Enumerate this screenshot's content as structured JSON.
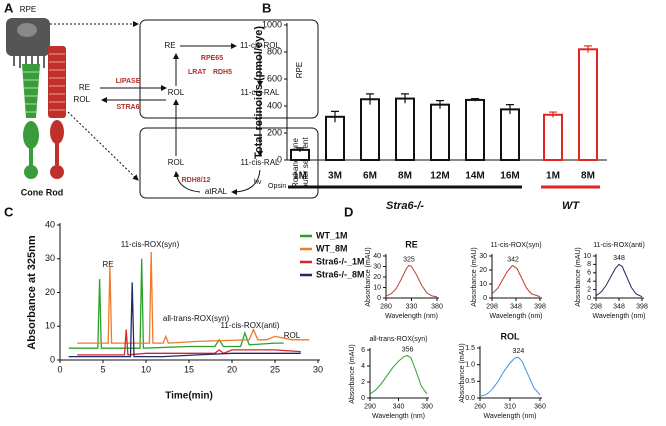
{
  "panel_labels": [
    "A",
    "B",
    "C",
    "D"
  ],
  "diagram": {
    "cell_label": "RPE",
    "photoreceptors": "Cone Rod",
    "rpe_box": {
      "side_label": "RPE",
      "nodes": [
        "RE",
        "11-cis-ROL",
        "ROL",
        "11-cis-RAL"
      ],
      "enzymes": [
        "RPE65",
        "LRAT",
        "RDH5"
      ]
    },
    "uptake": {
      "nodes": [
        "RE",
        "ROL"
      ],
      "enzymes": [
        "LIPASE",
        "STRA6"
      ]
    },
    "outer_segment_box": {
      "side_label": [
        "Rod and cone",
        "outer segment"
      ],
      "nodes": [
        "ROL",
        "11-cis-RAL",
        "atRAL"
      ],
      "enzymes": [
        "RDH8/12"
      ],
      "light": "hv",
      "protein": "Opsin"
    }
  },
  "chart_data": [
    {
      "type": "bar",
      "y_label": "Total retinoids (pmol/eye)",
      "categories": [
        "1M",
        "3M",
        "6M",
        "8M",
        "12M",
        "14M",
        "16M",
        "1M",
        "8M"
      ],
      "series": [
        {
          "name": "Stra6-/-",
          "color": "#111111",
          "values": [
            75,
            320,
            450,
            455,
            410,
            445,
            375,
            null,
            null
          ],
          "errors": [
            15,
            40,
            40,
            35,
            30,
            10,
            35,
            null,
            null
          ]
        },
        {
          "name": "WT",
          "color": "#e0261f",
          "values": [
            null,
            null,
            null,
            null,
            null,
            null,
            null,
            335,
            820
          ],
          "errors": [
            null,
            null,
            null,
            null,
            null,
            null,
            null,
            20,
            25
          ]
        }
      ],
      "ylim": [
        0,
        1000
      ],
      "yticks": [
        0,
        200,
        400,
        600,
        800,
        1000
      ]
    },
    {
      "type": "line",
      "x_label": "Time(min)",
      "y_label": "Absorbance at 325nm",
      "peak_labels": [
        "RE",
        "11-cis-ROX(syn)",
        "all-trans-ROX(syn)",
        "11-cis-ROX(anti)",
        "ROL"
      ],
      "series": [
        {
          "name": "WT_1M",
          "color": "#2ca02c",
          "x": [
            1,
            4.4,
            4.6,
            4.8,
            9.3,
            9.5,
            9.7,
            15,
            18,
            18.5,
            19,
            21,
            21.5,
            22,
            25,
            26
          ],
          "values": [
            3.5,
            3.5,
            24,
            3.5,
            3.5,
            30,
            3.5,
            4,
            4,
            6,
            4,
            4,
            8,
            4.5,
            5,
            5
          ]
        },
        {
          "name": "WT_8M",
          "color": "#f07a2a",
          "x": [
            2,
            5.6,
            5.8,
            6,
            10.4,
            10.6,
            10.8,
            12,
            12.3,
            12.6,
            16,
            22,
            22.5,
            23,
            24,
            25,
            27,
            29
          ],
          "values": [
            5,
            5,
            28,
            5,
            5,
            32,
            5,
            5,
            7,
            5,
            5.5,
            6,
            9,
            6,
            6,
            7,
            6,
            6
          ]
        },
        {
          "name": "Stra6-/-_1M",
          "color": "#d62728",
          "x": [
            2,
            7.5,
            7.7,
            7.9,
            10,
            13,
            18,
            18.5,
            19,
            20,
            25,
            28
          ],
          "values": [
            1.5,
            1.5,
            9,
            1.5,
            2,
            2,
            2,
            3,
            2,
            3,
            3,
            2.5
          ]
        },
        {
          "name": "Stra6-/-_8M",
          "color": "#1f2a6b",
          "x": [
            1,
            8.2,
            8.4,
            8.6,
            12,
            16,
            20,
            24,
            28
          ],
          "values": [
            1,
            1,
            23,
            1,
            1,
            1.5,
            2,
            2,
            2
          ]
        }
      ],
      "xlim": [
        0,
        30
      ],
      "xticks": [
        0,
        5,
        10,
        15,
        20,
        25,
        30
      ],
      "ylim": [
        0,
        40
      ],
      "yticks": [
        0,
        10,
        20,
        30,
        40
      ]
    },
    {
      "type": "line",
      "title": "RE",
      "x_label": "Wavelength (nm)",
      "y_label": "Absorbance (mAU)",
      "peak_x": 325,
      "series": [
        {
          "color": "#b5453a",
          "x": [
            280,
            290,
            300,
            310,
            320,
            325,
            330,
            340,
            350,
            360,
            370,
            380
          ],
          "values": [
            2,
            4,
            9,
            18,
            28,
            31,
            30,
            22,
            12,
            5,
            2,
            1
          ]
        }
      ],
      "xlim": [
        280,
        380
      ],
      "xticks": [
        280,
        330,
        380
      ],
      "ylim": [
        0,
        40
      ],
      "yticks": [
        0,
        10,
        20,
        30,
        40
      ]
    },
    {
      "type": "line",
      "title": "11-cis-ROX(syn)",
      "x_label": "Wavelength (nm)",
      "y_label": "Absorbance (mAU)",
      "peak_x": 342,
      "series": [
        {
          "color": "#c0392b",
          "x": [
            298,
            310,
            320,
            330,
            340,
            342,
            350,
            360,
            370,
            380,
            398
          ],
          "values": [
            3,
            7,
            13,
            19,
            23,
            23,
            21,
            14,
            7,
            3,
            1
          ]
        }
      ],
      "xlim": [
        298,
        398
      ],
      "xticks": [
        298,
        348,
        398
      ],
      "ylim": [
        0,
        30
      ],
      "yticks": [
        0,
        10,
        20,
        30
      ]
    },
    {
      "type": "line",
      "title": "11-cis-ROX(anti)",
      "x_label": "Wavelength (nm)",
      "y_label": "Absorbance (mAU)",
      "peak_x": 348,
      "series": [
        {
          "color": "#1f2a6b",
          "x": [
            298,
            310,
            320,
            330,
            340,
            348,
            355,
            365,
            375,
            385,
            398
          ],
          "values": [
            0.5,
            1.5,
            3,
            5,
            7,
            8,
            7.5,
            5,
            2.5,
            1,
            0.3
          ]
        }
      ],
      "xlim": [
        298,
        398
      ],
      "xticks": [
        298,
        348,
        398
      ],
      "ylim": [
        0,
        10
      ],
      "yticks": [
        0,
        2,
        4,
        6,
        8,
        10
      ]
    },
    {
      "type": "line",
      "title": "all-trans-ROX(syn)",
      "x_label": "Wavelength (nm)",
      "y_label": "Absorbance (mAU)",
      "peak_x": 356,
      "series": [
        {
          "color": "#2ca02c",
          "x": [
            290,
            300,
            310,
            320,
            330,
            340,
            350,
            356,
            362,
            370,
            380,
            390
          ],
          "values": [
            0.5,
            1,
            1.8,
            2.8,
            3.8,
            4.6,
            5.2,
            5.3,
            5,
            3.5,
            1.5,
            0.5
          ]
        }
      ],
      "xlim": [
        290,
        390
      ],
      "xticks": [
        290,
        340,
        390
      ],
      "ylim": [
        0,
        6
      ],
      "yticks": [
        0,
        2,
        4,
        6
      ]
    },
    {
      "type": "line",
      "title": "ROL",
      "x_label": "Wavelength (nm)",
      "y_label": "Absorbance (mAU)",
      "peak_x": 324,
      "series": [
        {
          "color": "#4a90d9",
          "x": [
            260,
            270,
            280,
            290,
            300,
            310,
            318,
            324,
            330,
            340,
            350,
            360
          ],
          "values": [
            0.05,
            0.1,
            0.25,
            0.5,
            0.8,
            1.05,
            1.2,
            1.22,
            1.1,
            0.7,
            0.3,
            0.1
          ]
        }
      ],
      "xlim": [
        260,
        360
      ],
      "xticks": [
        260,
        310,
        360
      ],
      "ylim": [
        0,
        1.5
      ],
      "yticks": [
        {
          "value": 0,
          "label": "0.0"
        },
        {
          "value": 0.5,
          "label": "0.5"
        },
        {
          "value": 1,
          "label": "1.0"
        },
        {
          "value": 1.5,
          "label": "1.5"
        }
      ]
    }
  ]
}
